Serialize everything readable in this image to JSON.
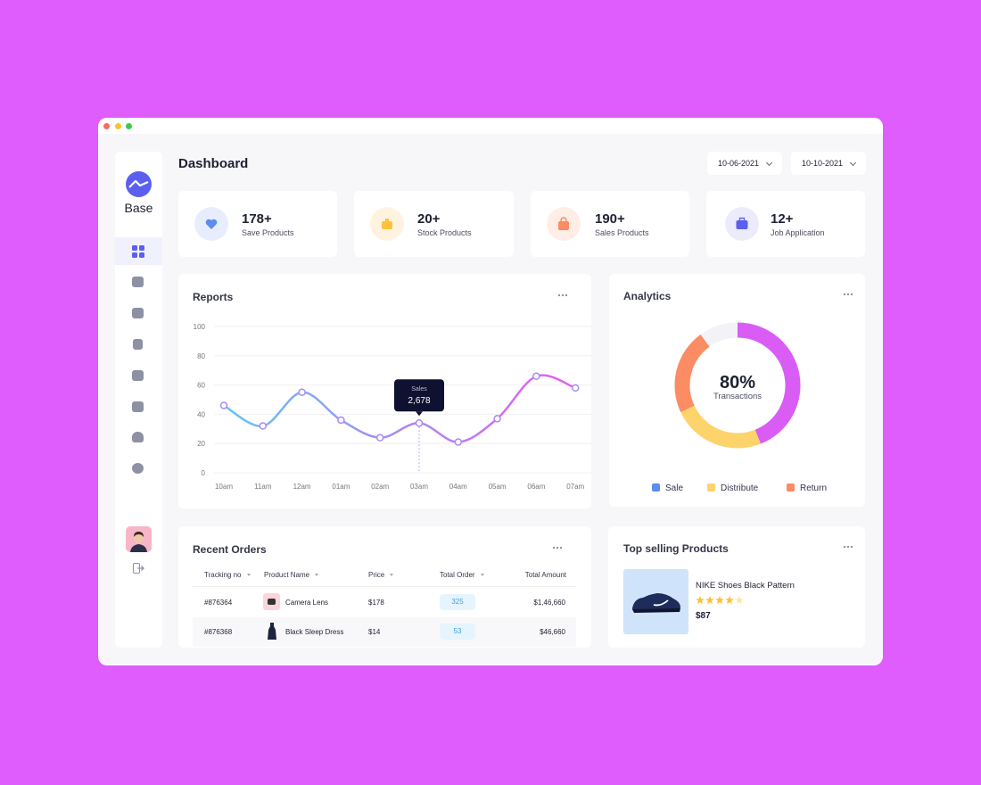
{
  "sidebar": {
    "brand": "Base"
  },
  "header": {
    "title": "Dashboard",
    "date_from": "10-06-2021",
    "date_to": "10-10-2021"
  },
  "stats": [
    {
      "value": "178+",
      "label": "Save Products"
    },
    {
      "value": "20+",
      "label": "Stock Products"
    },
    {
      "value": "190+",
      "label": "Sales Products"
    },
    {
      "value": "12+",
      "label": "Job Application"
    }
  ],
  "chart_data": [
    {
      "type": "line",
      "title": "Reports",
      "categories": [
        "10am",
        "11am",
        "12am",
        "01am",
        "02am",
        "03am",
        "04am",
        "05am",
        "06am",
        "07am"
      ],
      "series": [
        {
          "name": "Sales",
          "colors": [
            "#63c5f3",
            "#a98af6",
            "#e85ef0"
          ],
          "values": [
            46,
            32,
            55,
            36,
            24,
            34,
            21,
            37,
            66,
            58
          ]
        }
      ],
      "ylim": [
        0,
        100
      ],
      "yticks": [
        0,
        20,
        40,
        60,
        80,
        100
      ],
      "grid": true,
      "tooltip": {
        "value": "2,678"
      }
    },
    {
      "type": "donut",
      "title": "Analytics",
      "center_value": "80%",
      "center_label": "Transactions",
      "categories": [
        "Sale",
        "Distribute",
        "Return"
      ],
      "values": [
        44,
        24,
        22
      ],
      "colors": [
        "#d95cf5",
        "#fdd36b",
        "#fb8c63"
      ],
      "legend_colors": [
        "#5b8def",
        "#fdd36b",
        "#fb8c63"
      ]
    }
  ],
  "recent_orders": {
    "title": "Recent Orders",
    "columns": [
      "Tracking no",
      "Product Name",
      "Price",
      "Total Order",
      "Total Amount"
    ],
    "rows": [
      [
        "#876364",
        "Camera Lens",
        "$178",
        "325",
        "$1,46,660"
      ],
      [
        "#876368",
        "Black Sleep Dress",
        "$14",
        "53",
        "$46,660"
      ]
    ]
  },
  "top_selling": {
    "title": "Top selling Products",
    "product": "NIKE Shoes Black Pattern",
    "price": "$87",
    "rating": 4,
    "rating_max": 5
  }
}
